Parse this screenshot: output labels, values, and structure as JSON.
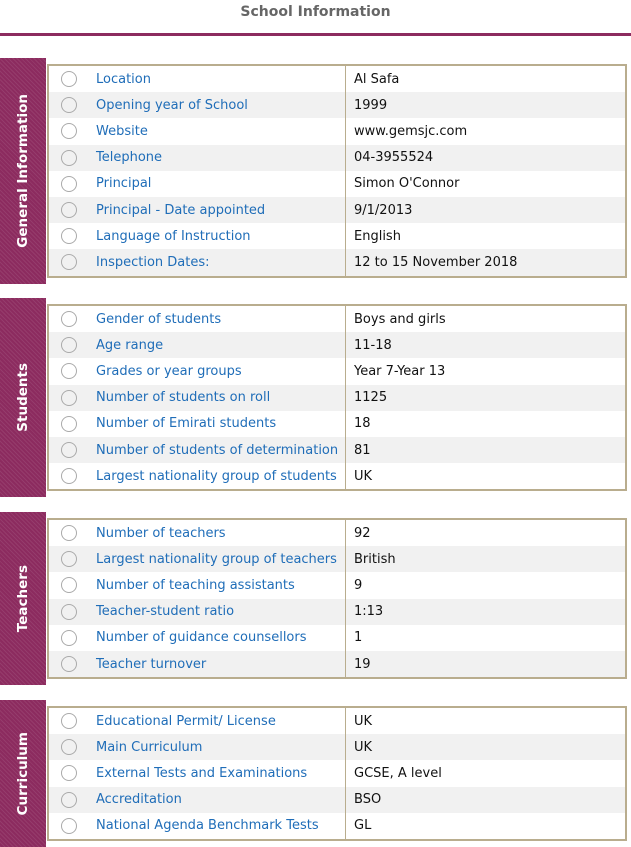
{
  "title": "School Information",
  "sections": [
    {
      "name": "General Information",
      "rows": [
        {
          "label": "Location",
          "value": "Al Safa"
        },
        {
          "label": "Opening year of School",
          "value": "1999"
        },
        {
          "label": "Website",
          "value": "www.gemsjc.com"
        },
        {
          "label": "Telephone",
          "value": "04-3955524"
        },
        {
          "label": "Principal",
          "value": "Simon O'Connor"
        },
        {
          "label": "Principal - Date appointed",
          "value": "9/1/2013"
        },
        {
          "label": "Language of Instruction",
          "value": "English"
        },
        {
          "label": "Inspection Dates:",
          "value": "12 to 15 November 2018"
        }
      ]
    },
    {
      "name": "Students",
      "rows": [
        {
          "label": "Gender of students",
          "value": "Boys and girls"
        },
        {
          "label": "Age range",
          "value": "11-18"
        },
        {
          "label": "Grades or year groups",
          "value": "Year 7-Year 13"
        },
        {
          "label": "Number of students on roll",
          "value": "1125"
        },
        {
          "label": "Number of Emirati students",
          "value": "18"
        },
        {
          "label": "Number of students of determination",
          "value": "81"
        },
        {
          "label": "Largest nationality group of students",
          "value": "UK"
        }
      ]
    },
    {
      "name": "Teachers",
      "rows": [
        {
          "label": "Number of teachers",
          "value": "92"
        },
        {
          "label": "Largest nationality group of teachers",
          "value": "British"
        },
        {
          "label": "Number of teaching assistants",
          "value": "9"
        },
        {
          "label": "Teacher-student ratio",
          "value": "1:13"
        },
        {
          "label": "Number of guidance counsellors",
          "value": "1"
        },
        {
          "label": "Teacher turnover",
          "value": "19"
        }
      ]
    },
    {
      "name": "Curriculum",
      "rows": [
        {
          "label": "Educational Permit/ License",
          "value": "UK"
        },
        {
          "label": "Main Curriculum",
          "value": "UK"
        },
        {
          "label": "External Tests and Examinations",
          "value": "GCSE, A level"
        },
        {
          "label": "Accreditation",
          "value": "BSO"
        },
        {
          "label": "National Agenda Benchmark Tests",
          "value": "GL"
        }
      ]
    }
  ]
}
